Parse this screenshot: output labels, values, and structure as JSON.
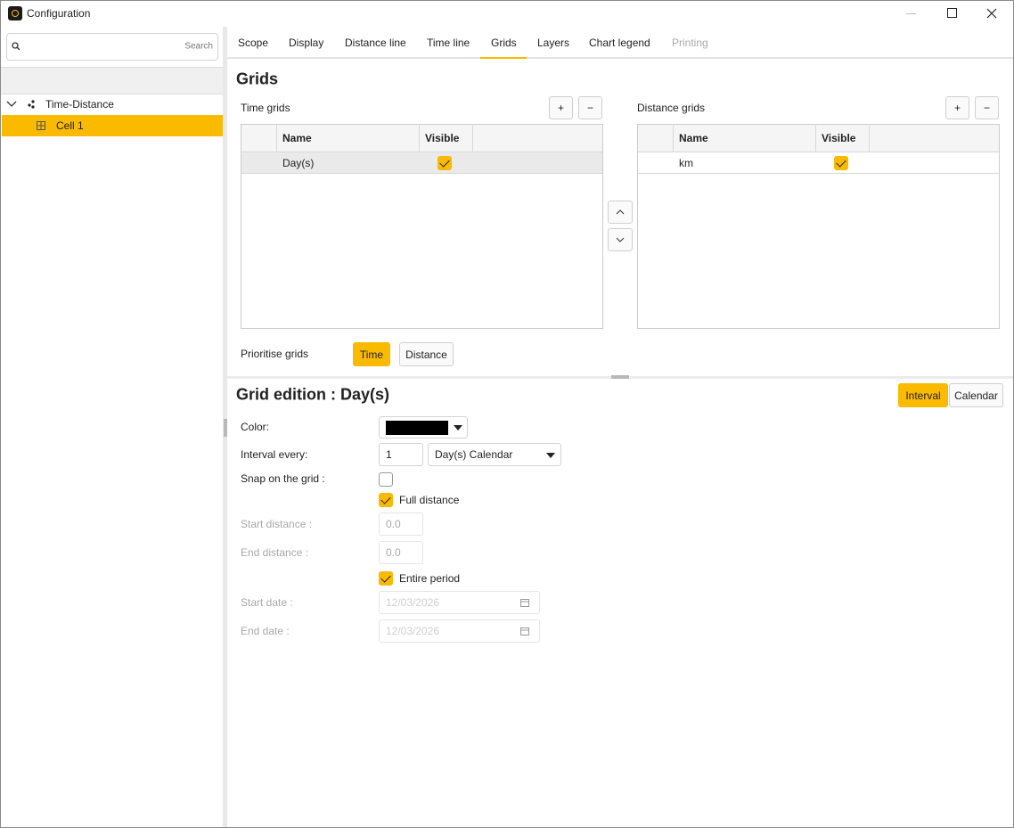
{
  "window": {
    "title": "Configuration"
  },
  "sidebar": {
    "search_placeholder": "Search",
    "tree": [
      "Time-Distance",
      "Cell 1"
    ]
  },
  "tabs": [
    "Scope",
    "Display",
    "Distance line",
    "Time line",
    "Grids",
    "Layers",
    "Chart legend",
    "Printing"
  ],
  "grids": {
    "title": "Grids",
    "time_grids": {
      "label": "Time grids",
      "columns": [
        "Name",
        "Visible"
      ],
      "rows": [
        "Day(s)"
      ]
    },
    "distance_grids": {
      "label": "Distance grids",
      "columns": [
        "Name",
        "Visible"
      ],
      "rows": [
        "km"
      ]
    },
    "prioritise": {
      "label": "Prioritise grids",
      "options": [
        "Time",
        "Distance"
      ]
    }
  },
  "edition": {
    "title": "Grid edition : Day(s)",
    "modes": [
      "Interval",
      "Calendar"
    ],
    "color_label": "Color:",
    "interval_label": "Interval every:",
    "interval_value": "1",
    "interval_unit": "Day(s) Calendar",
    "snap_label": "Snap on the grid :",
    "full_distance": "Full distance",
    "start_distance_label": "Start distance :",
    "start_distance": "0.0",
    "end_distance_label": "End distance :",
    "end_distance": "0.0",
    "entire_period": "Entire period",
    "start_date_label": "Start date :",
    "start_date": "12/03/2026",
    "end_date_label": "End date :",
    "end_date": "12/03/2026"
  }
}
